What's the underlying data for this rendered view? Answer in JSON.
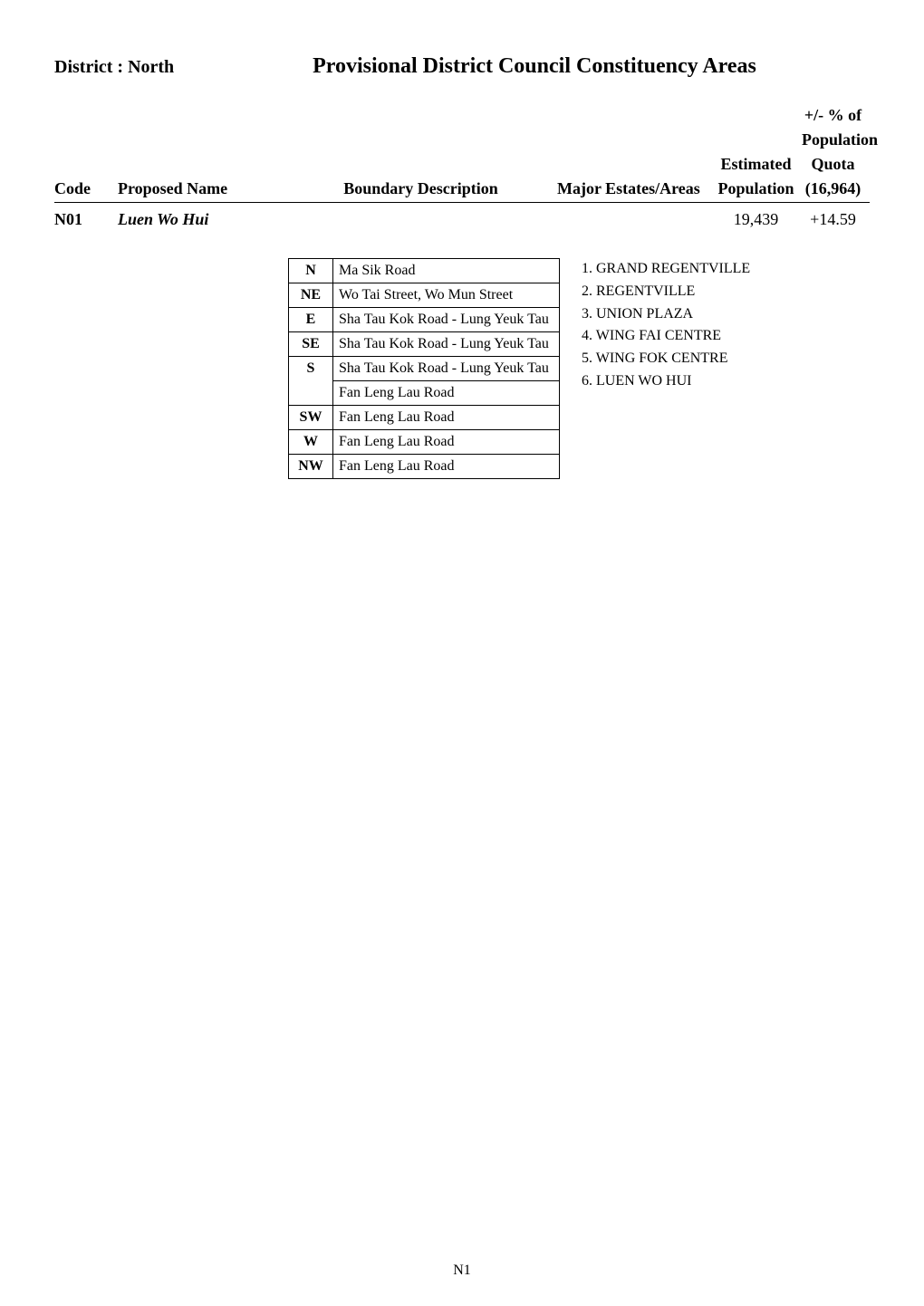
{
  "district_label": "District : North",
  "page_title": "Provisional District Council Constituency Areas",
  "columns": {
    "code": "Code",
    "proposed_name": "Proposed Name",
    "boundary_desc": "Boundary Description",
    "major_estates": "Major Estates/Areas",
    "est_pop": "Estimated",
    "est_pop2": "Population",
    "pct_of": "+/- % of",
    "pct_pop": "Population",
    "quota": "Quota",
    "quota_val": "(16,964)"
  },
  "row": {
    "code": "N01",
    "name": "Luen Wo Hui",
    "est_population": "19,439",
    "pct": "+14.59"
  },
  "boundary": [
    {
      "dir": "N",
      "desc": "Ma Sik Road"
    },
    {
      "dir": "NE",
      "desc": "Wo Tai Street, Wo Mun Street"
    },
    {
      "dir": "E",
      "desc": "Sha Tau Kok Road - Lung Yeuk Tau"
    },
    {
      "dir": "SE",
      "desc": "Sha Tau Kok Road - Lung Yeuk Tau"
    },
    {
      "dir": "S",
      "desc": "Sha Tau Kok Road - Lung Yeuk Tau\nFan Leng Lau Road"
    },
    {
      "dir": "SW",
      "desc": "Fan Leng Lau Road"
    },
    {
      "dir": "W",
      "desc": "Fan Leng Lau Road"
    },
    {
      "dir": "NW",
      "desc": "Fan Leng Lau Road"
    }
  ],
  "estates": [
    "GRAND REGENTVILLE",
    "REGENTVILLE",
    "UNION PLAZA",
    "WING FAI CENTRE",
    "WING FOK CENTRE",
    "LUEN WO HUI"
  ],
  "page_number": "N1"
}
